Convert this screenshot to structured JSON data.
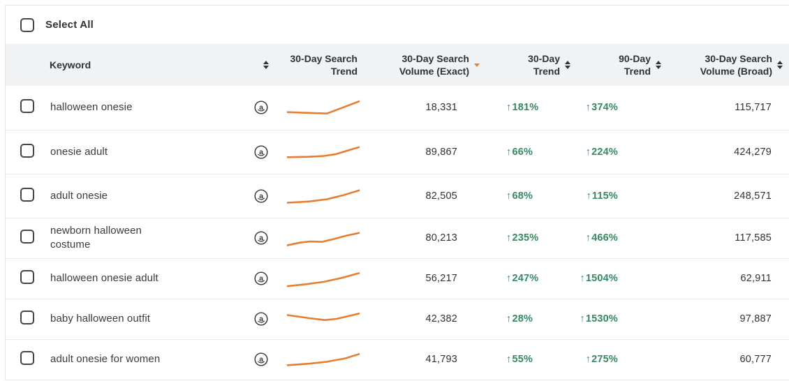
{
  "colors": {
    "accent_orange": "#E87D2F",
    "positive_green": "#358A62",
    "header_bg": "#F1F2F4",
    "row_border": "#E7E9EC",
    "text_dark": "#2F3237"
  },
  "icons": {
    "up_arrow": "↑",
    "marketplace": "amazon-circle-a"
  },
  "select_all": {
    "label": "Select All",
    "checked": false
  },
  "table": {
    "columns": {
      "keyword": {
        "label": "Keyword",
        "sortable": true,
        "sorted": "none"
      },
      "trend_chart": {
        "label": "30-Day Search Trend",
        "sortable": false
      },
      "vol_exact": {
        "label": "30-Day Search Volume (Exact)",
        "sortable": true,
        "sorted": "desc"
      },
      "trend_30": {
        "label": "30-Day Trend",
        "sortable": true,
        "sorted": "none"
      },
      "trend_90": {
        "label": "90-Day Trend",
        "sortable": true,
        "sorted": "none"
      },
      "vol_broad": {
        "label": "30-Day Search Volume (Broad)",
        "sortable": true,
        "sorted": "none"
      }
    },
    "rows": [
      {
        "keyword": "halloween onesie",
        "marketplace": "amazon",
        "checked": false,
        "spark": [
          [
            0,
            0.74
          ],
          [
            0.3,
            0.78
          ],
          [
            0.55,
            0.81
          ],
          [
            1,
            0.18
          ]
        ],
        "vol_exact": "18,331",
        "trend_30": "181%",
        "trend_30_dir": "up",
        "trend_90": "374%",
        "trend_90_dir": "up",
        "vol_broad": "115,717"
      },
      {
        "keyword": "onesie adult",
        "marketplace": "amazon",
        "checked": false,
        "spark": [
          [
            0,
            0.76
          ],
          [
            0.3,
            0.74
          ],
          [
            0.5,
            0.7
          ],
          [
            0.68,
            0.6
          ],
          [
            0.85,
            0.4
          ],
          [
            1,
            0.24
          ]
        ],
        "vol_exact": "89,867",
        "trend_30": "66%",
        "trend_30_dir": "up",
        "trend_90": "224%",
        "trend_90_dir": "up",
        "vol_broad": "424,279"
      },
      {
        "keyword": "adult onesie",
        "marketplace": "amazon",
        "checked": false,
        "spark": [
          [
            0,
            0.84
          ],
          [
            0.3,
            0.78
          ],
          [
            0.55,
            0.66
          ],
          [
            0.78,
            0.45
          ],
          [
            1,
            0.2
          ]
        ],
        "vol_exact": "82,505",
        "trend_30": "68%",
        "trend_30_dir": "up",
        "trend_90": "115%",
        "trend_90_dir": "up",
        "vol_broad": "248,571"
      },
      {
        "keyword": "newborn halloween costume",
        "marketplace": "amazon",
        "checked": false,
        "spark": [
          [
            0,
            0.88
          ],
          [
            0.18,
            0.74
          ],
          [
            0.32,
            0.68
          ],
          [
            0.48,
            0.7
          ],
          [
            0.62,
            0.58
          ],
          [
            0.82,
            0.38
          ],
          [
            1,
            0.24
          ]
        ],
        "vol_exact": "80,213",
        "trend_30": "235%",
        "trend_30_dir": "up",
        "trend_90": "466%",
        "trend_90_dir": "up",
        "vol_broad": "117,585"
      },
      {
        "keyword": "halloween onesie adult",
        "marketplace": "amazon",
        "checked": false,
        "spark": [
          [
            0,
            0.9
          ],
          [
            0.25,
            0.8
          ],
          [
            0.5,
            0.68
          ],
          [
            0.75,
            0.48
          ],
          [
            1,
            0.22
          ]
        ],
        "vol_exact": "56,217",
        "trend_30": "247%",
        "trend_30_dir": "up",
        "trend_90": "1504%",
        "trend_90_dir": "up",
        "vol_broad": "62,911"
      },
      {
        "keyword": "baby halloween outfit",
        "marketplace": "amazon",
        "checked": false,
        "spark": [
          [
            0,
            0.3
          ],
          [
            0.3,
            0.46
          ],
          [
            0.52,
            0.56
          ],
          [
            0.68,
            0.5
          ],
          [
            1,
            0.22
          ]
        ],
        "vol_exact": "42,382",
        "trend_30": "28%",
        "trend_30_dir": "up",
        "trend_90": "1530%",
        "trend_90_dir": "up",
        "vol_broad": "97,887"
      },
      {
        "keyword": "adult onesie for women",
        "marketplace": "amazon",
        "checked": false,
        "spark": [
          [
            0,
            0.8
          ],
          [
            0.3,
            0.72
          ],
          [
            0.55,
            0.62
          ],
          [
            0.8,
            0.45
          ],
          [
            1,
            0.22
          ]
        ],
        "vol_exact": "41,793",
        "trend_30": "55%",
        "trend_30_dir": "up",
        "trend_90": "275%",
        "trend_90_dir": "up",
        "vol_broad": "60,777"
      }
    ]
  }
}
